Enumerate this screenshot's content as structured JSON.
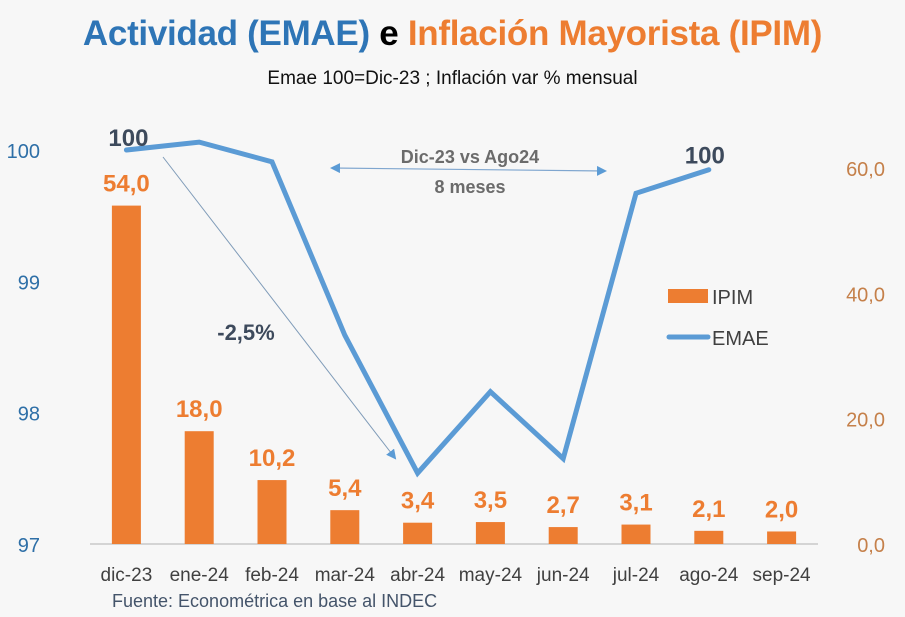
{
  "header": {
    "title_part1": "Actividad (EMAE)",
    "title_part2": "e",
    "title_part3": "Inflación Mayorista (IPIM)",
    "subtitle": "Emae 100=Dic-23 ; Inflación var % mensual"
  },
  "source": "Fuente: Econométrica en base al INDEC",
  "colors": {
    "emae": "#5b9bd5",
    "ipim": "#ed7d31",
    "left_axis_text": "#2e6fa7",
    "right_axis_text": "#c5804a",
    "annotation_dark": "#3d4a5c",
    "annotation_gray": "#6b6b6b"
  },
  "chart_data": {
    "type": "bar+line",
    "title": "Actividad (EMAE) e Inflación Mayorista (IPIM)",
    "subtitle": "Emae 100=Dic-23 ; Inflación var % mensual",
    "categories": [
      "dic-23",
      "ene-24",
      "feb-24",
      "mar-24",
      "abr-24",
      "may-24",
      "jun-24",
      "jul-24",
      "ago-24",
      "sep-24"
    ],
    "series": [
      {
        "name": "IPIM",
        "type": "bar",
        "axis": "right",
        "values": [
          54.0,
          18.0,
          10.2,
          5.4,
          3.4,
          3.5,
          2.7,
          3.1,
          2.1,
          2.0
        ],
        "labels": [
          "54,0",
          "18,0",
          "10,2",
          "5,4",
          "3,4",
          "3,5",
          "2,7",
          "3,1",
          "2,1",
          "2,0"
        ]
      },
      {
        "name": "EMAE",
        "type": "line",
        "axis": "left",
        "values": [
          100.0,
          100.06,
          99.91,
          98.59,
          97.54,
          98.16,
          97.65,
          99.67,
          99.85,
          null
        ]
      }
    ],
    "left_axis": {
      "ylim": [
        97,
        100
      ],
      "ticks": [
        97,
        98,
        99,
        100
      ],
      "tick_labels": [
        "97",
        "98",
        "99",
        "100"
      ]
    },
    "right_axis": {
      "ylim": [
        0,
        60
      ],
      "ticks": [
        0,
        20,
        40,
        60
      ],
      "tick_labels": [
        "0,0",
        "20,0",
        "40,0",
        "60,0"
      ]
    },
    "xlabel": "",
    "ylabel": "",
    "grid": false,
    "legend": {
      "position": "right-center",
      "entries": [
        "IPIM",
        "EMAE"
      ]
    },
    "annotations": {
      "emae_start_label": "100",
      "emae_end_label": "100",
      "drop_label": "-2,5%",
      "span_label_line1": "Dic-23 vs Ago24",
      "span_label_line2": "8 meses"
    }
  }
}
